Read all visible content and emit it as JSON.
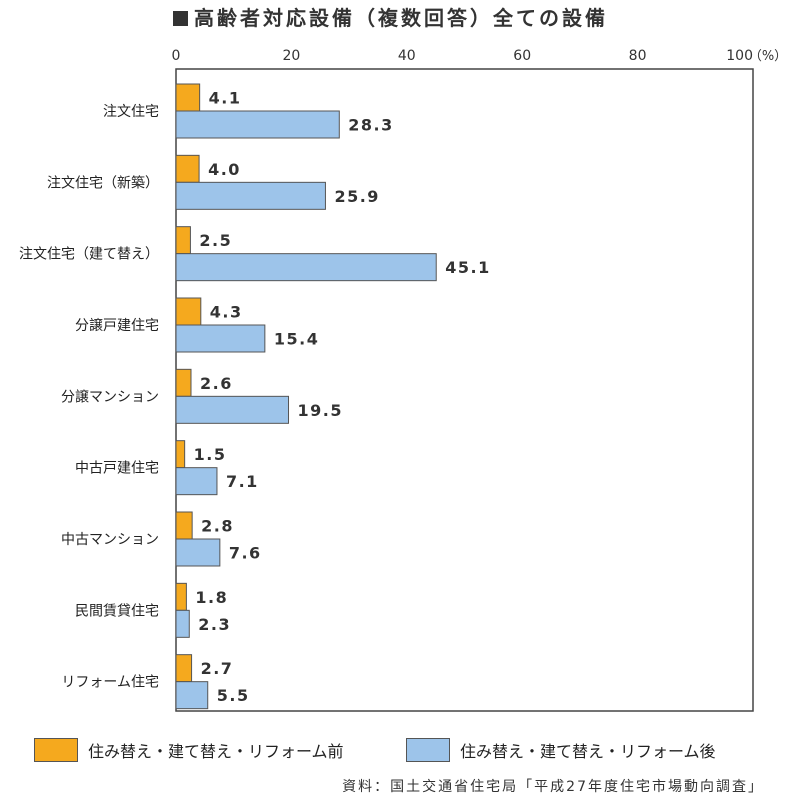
{
  "title": "高齢者対応設備（複数回答）全ての設備",
  "source": "資料：国土交通省住宅局「平成27年度住宅市場動向調査」",
  "colors": {
    "before": "#F5A91E",
    "after": "#9DC4EA",
    "border": "#555555"
  },
  "chart_data": {
    "type": "bar",
    "orientation": "horizontal",
    "title": "高齢者対応設備（複数回答）全ての設備",
    "xlabel": "",
    "ylabel": "",
    "unit_label": "（%）",
    "xlim": [
      0,
      100
    ],
    "ticks": [
      "0",
      "20",
      "40",
      "60",
      "80",
      "100"
    ],
    "categories": [
      "注文住宅",
      "注文住宅（新築）",
      "注文住宅（建て替え）",
      "分譲戸建住宅",
      "分譲マンション",
      "中古戸建住宅",
      "中古マンション",
      "民間賃貸住宅",
      "リフォーム住宅"
    ],
    "series": [
      {
        "name": "住み替え・建て替え・リフォーム前",
        "values": [
          4.1,
          4.0,
          2.5,
          4.3,
          2.6,
          1.5,
          2.8,
          1.8,
          2.7
        ]
      },
      {
        "name": "住み替え・建て替え・リフォーム後",
        "values": [
          28.3,
          25.9,
          45.1,
          15.4,
          19.5,
          7.1,
          7.6,
          2.3,
          5.5
        ]
      }
    ],
    "value_labels": [
      [
        "4.1",
        "4.0",
        "2.5",
        "4.3",
        "2.6",
        "1.5",
        "2.8",
        "1.8",
        "2.7"
      ],
      [
        "28.3",
        "25.9",
        "45.1",
        "15.4",
        "19.5",
        "7.1",
        "7.6",
        "2.3",
        "5.5"
      ]
    ],
    "grid": false,
    "legend": "bottom"
  }
}
